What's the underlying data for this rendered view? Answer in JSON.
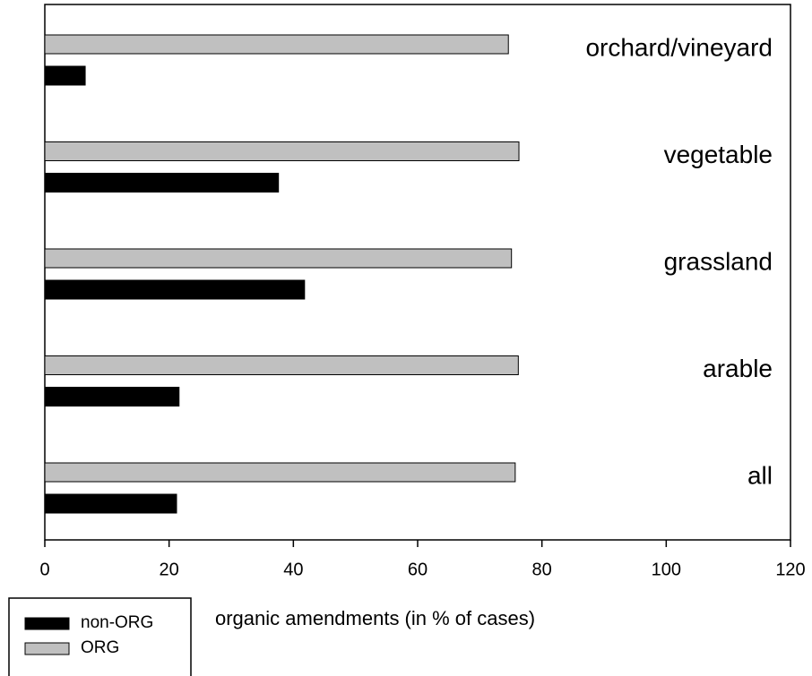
{
  "chart_data": {
    "type": "barh",
    "xlabel": "organic amendments (in % of cases)",
    "categories": [
      "orchard/vineyard",
      "vegetable",
      "grassland",
      "arable",
      "all"
    ],
    "series": [
      {
        "name": "non-ORG",
        "color": "#000000",
        "values": [
          6.5,
          37.6,
          41.8,
          21.6,
          21.2
        ]
      },
      {
        "name": "ORG",
        "color": "#c0c0c0",
        "values": [
          74.6,
          76.3,
          75.1,
          76.2,
          75.7
        ]
      }
    ],
    "xlim": [
      0,
      120
    ],
    "xticks": [
      0,
      20,
      40,
      60,
      80,
      100,
      120
    ],
    "legend": "lower left"
  }
}
